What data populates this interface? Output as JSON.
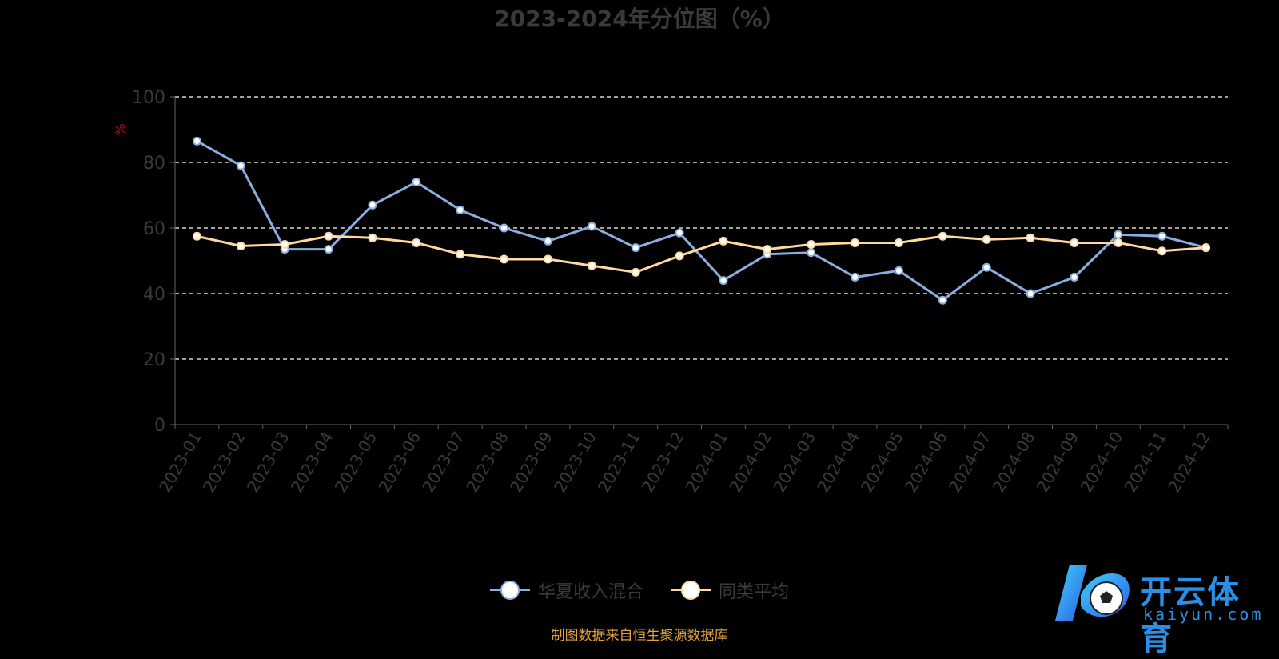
{
  "title": "2023-2024年分位图（%）",
  "source": "制图数据来自恒生聚源数据库",
  "watermark": {
    "brand": "开云体育",
    "domain": "kaiyun.com"
  },
  "colors": {
    "series1": "#8aaee0",
    "series2": "#ffd9a0",
    "grid": "#ffffff",
    "axis": "#666666",
    "ylabel": "#cc0000"
  },
  "chart_data": {
    "type": "line",
    "title": "2023-2024年分位图（%）",
    "xlabel": "",
    "ylabel": "%",
    "ylim": [
      0,
      100
    ],
    "yticks": [
      0,
      20,
      40,
      60,
      80,
      100
    ],
    "grid": true,
    "legend": "bottom-center",
    "categories": [
      "2023-01",
      "2023-02",
      "2023-03",
      "2023-04",
      "2023-05",
      "2023-06",
      "2023-07",
      "2023-08",
      "2023-09",
      "2023-10",
      "2023-11",
      "2023-12",
      "2024-01",
      "2024-02",
      "2024-03",
      "2024-04",
      "2024-05",
      "2024-06",
      "2024-07",
      "2024-08",
      "2024-09",
      "2024-10",
      "2024-11",
      "2024-12"
    ],
    "series": [
      {
        "name": "华夏收入混合",
        "values": [
          86.5,
          79,
          53.5,
          53.5,
          67,
          74,
          65.5,
          60,
          56,
          60.5,
          54,
          58.5,
          44,
          52,
          52.5,
          45,
          47,
          38,
          48,
          40,
          45,
          58,
          57.5,
          54
        ]
      },
      {
        "name": "同类平均",
        "values": [
          57.5,
          54.5,
          55,
          57.5,
          57,
          55.5,
          52,
          50.5,
          50.5,
          48.5,
          46.5,
          51.5,
          56,
          53.5,
          55,
          55.5,
          55.5,
          57.5,
          56.5,
          57,
          55.5,
          55.5,
          53,
          54
        ]
      }
    ]
  }
}
